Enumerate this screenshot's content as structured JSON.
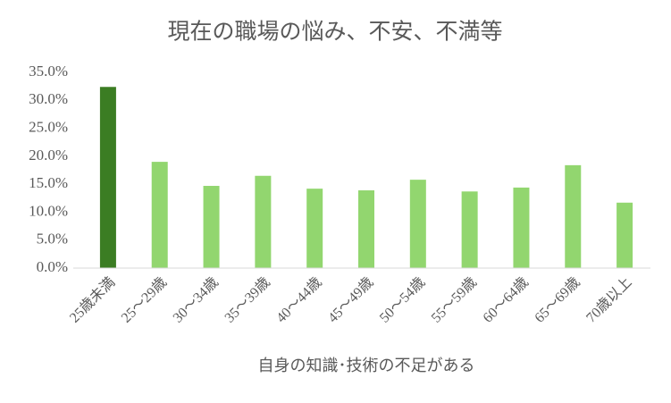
{
  "chart_data": {
    "type": "bar",
    "title": "現在の職場の悩み、不安、不満等",
    "x_label": "自身の知識･技術の不足がある",
    "categories": [
      "25歳未満",
      "25～29歳",
      "30～34歳",
      "35～39歳",
      "40～44歳",
      "45～49歳",
      "50～54歳",
      "55～59歳",
      "60～64歳",
      "65～69歳",
      "70歳以上"
    ],
    "values": [
      32.4,
      19.0,
      14.7,
      16.5,
      14.2,
      13.9,
      15.8,
      13.7,
      14.4,
      18.4,
      11.7
    ],
    "colors": [
      "#3b7d23",
      "#92d66f",
      "#92d66f",
      "#92d66f",
      "#92d66f",
      "#92d66f",
      "#92d66f",
      "#92d66f",
      "#92d66f",
      "#92d66f",
      "#92d66f"
    ],
    "ylim": [
      0,
      35
    ],
    "yticks": [
      {
        "value": 0,
        "label": "0.0%"
      },
      {
        "value": 5,
        "label": "5.0%"
      },
      {
        "value": 10,
        "label": "10.0%"
      },
      {
        "value": 15,
        "label": "15.0%"
      },
      {
        "value": 20,
        "label": "20.0%"
      },
      {
        "value": 25,
        "label": "25.0%"
      },
      {
        "value": 30,
        "label": "30.0%"
      },
      {
        "value": 35,
        "label": "35.0%"
      }
    ],
    "grid": false
  }
}
